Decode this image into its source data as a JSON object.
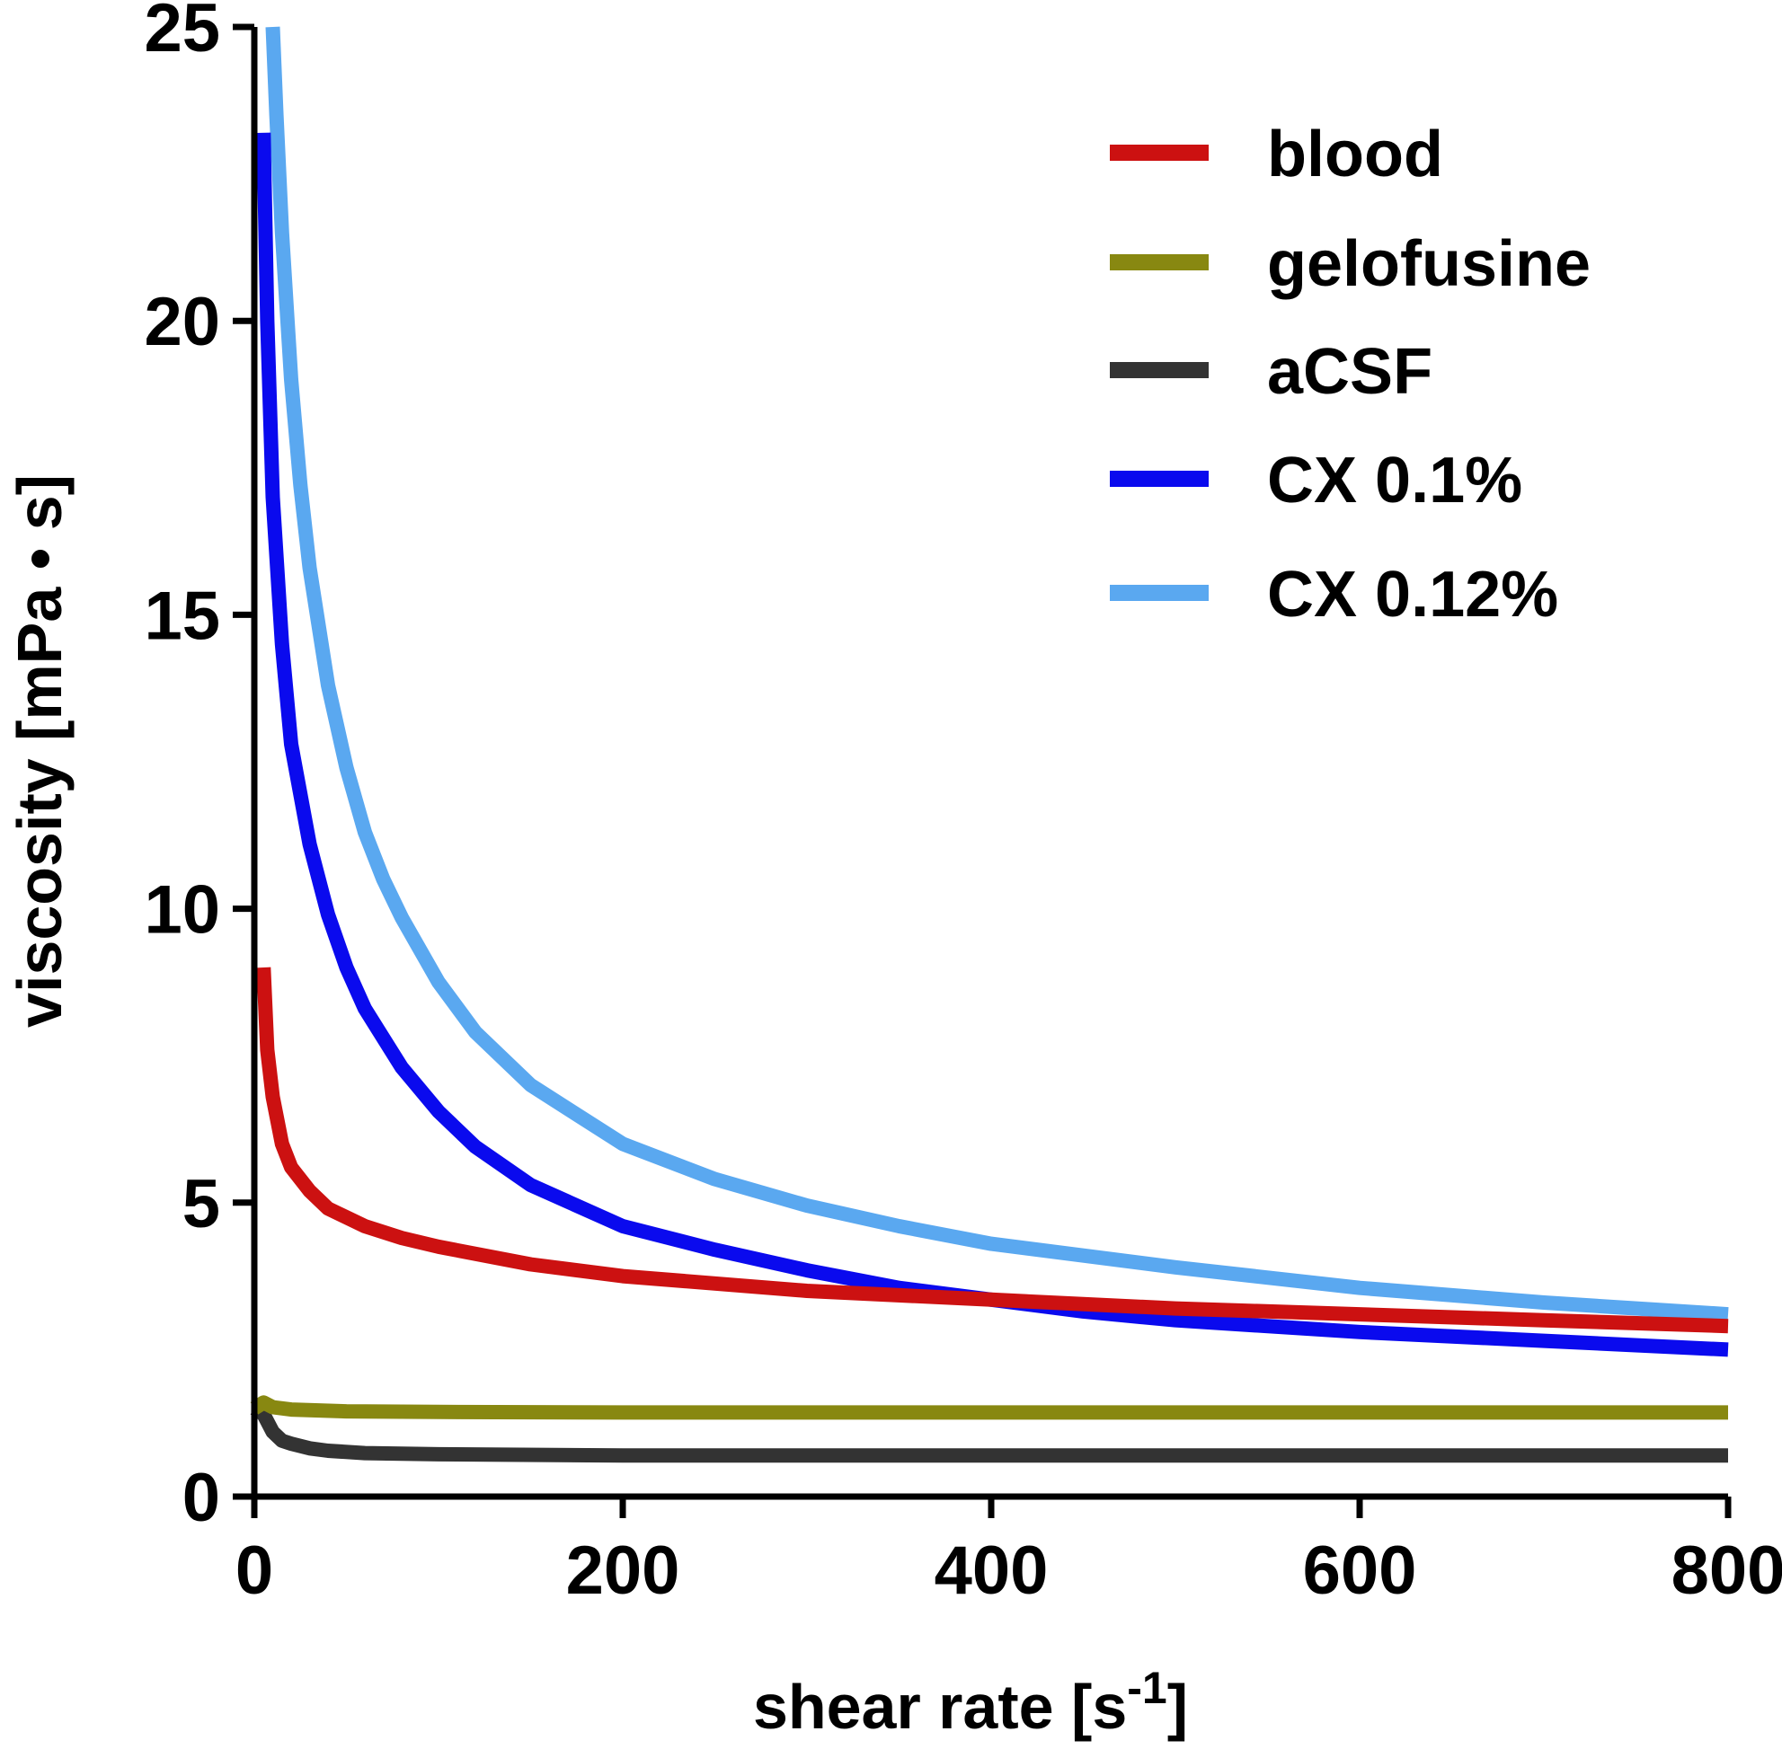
{
  "chart_data": {
    "type": "line",
    "title": "",
    "xlabel": "shear rate [s",
    "xlabel_superscript": "-1",
    "xlabel_close": "]",
    "ylabel": "viscosity [mPa • s]",
    "xlim": [
      0,
      800
    ],
    "ylim": [
      0,
      25
    ],
    "xticks": [
      "0",
      "200",
      "400",
      "600",
      "800"
    ],
    "yticks": [
      "0",
      "5",
      "10",
      "15",
      "20",
      "25"
    ],
    "xtick_values": [
      0,
      200,
      400,
      600,
      800
    ],
    "ytick_values": [
      0,
      5,
      10,
      15,
      20,
      25
    ],
    "grid": false,
    "legend_position": "top-right",
    "series": [
      {
        "name": "blood",
        "color": "#cc1111",
        "x": [
          5,
          7,
          10,
          15,
          20,
          30,
          40,
          60,
          80,
          100,
          150,
          200,
          300,
          400,
          500,
          600,
          700,
          800
        ],
        "y": [
          9.0,
          7.6,
          6.8,
          6.0,
          5.6,
          5.2,
          4.9,
          4.6,
          4.4,
          4.25,
          3.95,
          3.75,
          3.5,
          3.35,
          3.2,
          3.1,
          3.0,
          2.9
        ]
      },
      {
        "name": "gelofusine",
        "color": "#888811",
        "x": [
          0,
          5,
          10,
          20,
          50,
          100,
          200,
          400,
          600,
          800
        ],
        "y": [
          1.5,
          1.6,
          1.52,
          1.48,
          1.45,
          1.44,
          1.43,
          1.43,
          1.43,
          1.43
        ]
      },
      {
        "name": "aCSF",
        "color": "#333333",
        "x": [
          0,
          5,
          10,
          15,
          20,
          30,
          40,
          60,
          100,
          200,
          400,
          600,
          800
        ],
        "y": [
          1.5,
          1.4,
          1.1,
          0.95,
          0.9,
          0.82,
          0.78,
          0.74,
          0.72,
          0.7,
          0.7,
          0.7,
          0.7
        ]
      },
      {
        "name": "CX 0.1%",
        "color": "#0a0aee",
        "x": [
          5,
          7,
          10,
          15,
          20,
          30,
          40,
          50,
          60,
          80,
          100,
          120,
          150,
          200,
          250,
          300,
          350,
          400,
          450,
          500,
          600,
          700,
          800
        ],
        "y": [
          23.2,
          20.0,
          17.0,
          14.5,
          12.8,
          11.1,
          9.9,
          9.0,
          8.3,
          7.3,
          6.55,
          5.95,
          5.3,
          4.6,
          4.2,
          3.85,
          3.55,
          3.35,
          3.15,
          3.0,
          2.8,
          2.65,
          2.5
        ]
      },
      {
        "name": "CX 0.12%",
        "color": "#5aa8f0",
        "x": [
          10,
          12,
          15,
          20,
          25,
          30,
          40,
          50,
          60,
          70,
          80,
          100,
          120,
          150,
          200,
          250,
          300,
          350,
          400,
          500,
          600,
          700,
          800
        ],
        "y": [
          25.0,
          23.5,
          21.5,
          19.0,
          17.2,
          15.8,
          13.8,
          12.4,
          11.3,
          10.5,
          9.85,
          8.75,
          7.9,
          7.0,
          6.0,
          5.4,
          4.95,
          4.6,
          4.3,
          3.9,
          3.55,
          3.3,
          3.1
        ]
      }
    ]
  }
}
